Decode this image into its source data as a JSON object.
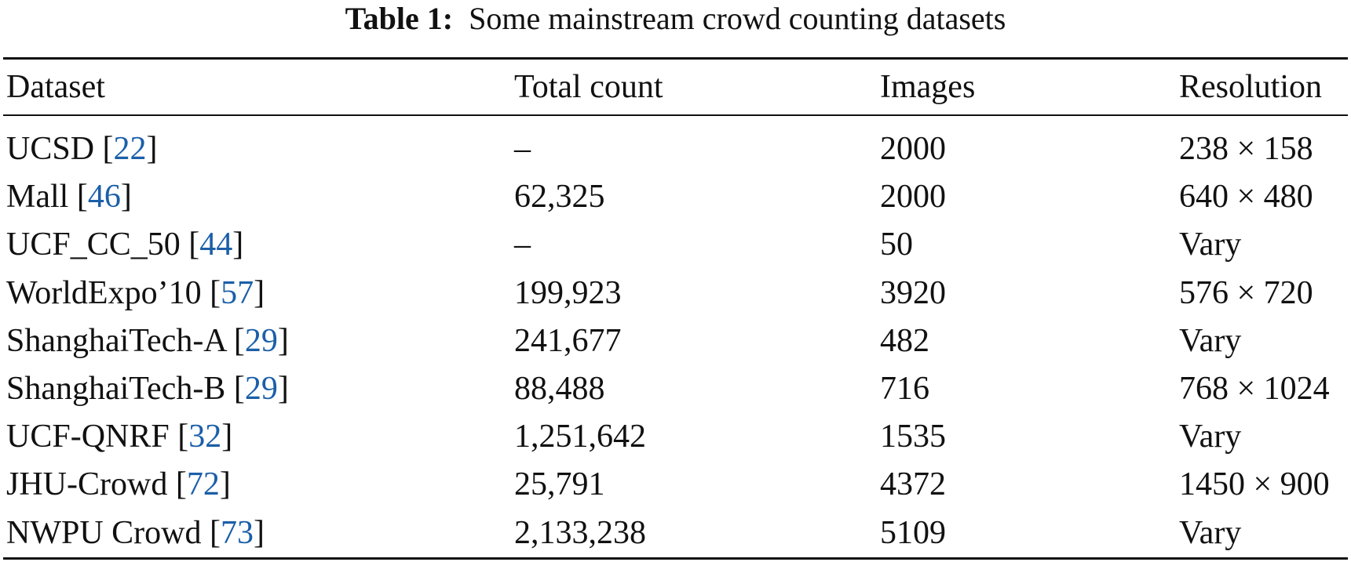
{
  "caption": {
    "label": "Table 1:",
    "text": "Some mainstream crowd counting datasets"
  },
  "table": {
    "headers": [
      "Dataset",
      "Total count",
      "Images",
      "Resolution"
    ],
    "rows": [
      {
        "dataset": "UCSD",
        "ref": "22",
        "total_count": "–",
        "images": "2000",
        "resolution": "238 × 158"
      },
      {
        "dataset": "Mall",
        "ref": "46",
        "total_count": "62,325",
        "images": "2000",
        "resolution": "640 × 480"
      },
      {
        "dataset": "UCF_CC_50",
        "ref": "44",
        "total_count": "–",
        "images": "50",
        "resolution": "Vary"
      },
      {
        "dataset": "WorldExpo’10",
        "ref": "57",
        "total_count": "199,923",
        "images": "3920",
        "resolution": "576 × 720"
      },
      {
        "dataset": "ShanghaiTech-A",
        "ref": "29",
        "total_count": "241,677",
        "images": "482",
        "resolution": "Vary"
      },
      {
        "dataset": "ShanghaiTech-B",
        "ref": "29",
        "total_count": "88,488",
        "images": "716",
        "resolution": "768 × 1024"
      },
      {
        "dataset": "UCF-QNRF",
        "ref": "32",
        "total_count": "1,251,642",
        "images": "1535",
        "resolution": "Vary"
      },
      {
        "dataset": "JHU-Crowd",
        "ref": "72",
        "total_count": "25,791",
        "images": "4372",
        "resolution": "1450 × 900"
      },
      {
        "dataset": "NWPU Crowd",
        "ref": "73",
        "total_count": "2,133,238",
        "images": "5109",
        "resolution": "Vary"
      }
    ]
  },
  "colors": {
    "citation": "#1b5fa8",
    "text": "#111111"
  }
}
